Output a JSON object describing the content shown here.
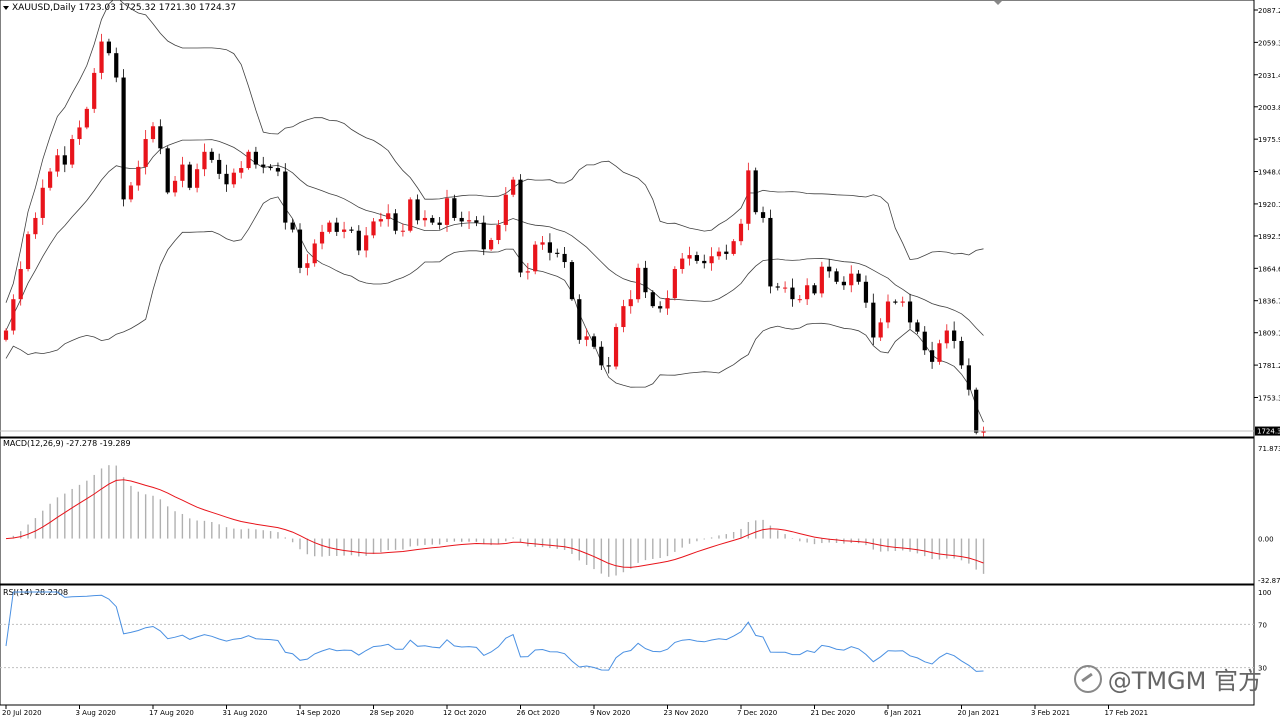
{
  "header": {
    "symbol_line": "XAUUSD,Daily  1723.03 1725.32 1721.30 1724.37"
  },
  "indicators": {
    "macd_label": "MACD(12,26,9) -27.278 -19.289",
    "rsi_label": "RSI(14) 28.2308"
  },
  "price_axis": {
    "ticks": [
      "2087.20",
      "2059.30",
      "2031.40",
      "2003.80",
      "1975.90",
      "1948.00",
      "1920.10",
      "1892.50",
      "1864.60",
      "1836.70",
      "1809.10",
      "1781.20",
      "1753.30"
    ],
    "current_price": "1724.37"
  },
  "macd_axis": {
    "ticks": [
      "71.873",
      "0.00",
      "-32.879"
    ]
  },
  "rsi_axis": {
    "ticks": [
      "100",
      "70",
      "30"
    ]
  },
  "time_axis": {
    "labels": [
      "20 Jul 2020",
      "3 Aug 2020",
      "17 Aug 2020",
      "31 Aug 2020",
      "14 Sep 2020",
      "28 Sep 2020",
      "12 Oct 2020",
      "26 Oct 2020",
      "9 Nov 2020",
      "23 Nov 2020",
      "7 Dec 2020",
      "21 Dec 2020",
      "6 Jan 2021",
      "20 Jan 2021",
      "3 Feb 2021",
      "17 Feb 2021"
    ]
  },
  "watermark": {
    "text": "@TMGM 官方"
  },
  "colors": {
    "bull": "#e8141b",
    "bear": "#000000",
    "band": "#404040",
    "signal": "#e8141b",
    "histogram": "#b0b0b0",
    "rsi": "#4a90e2"
  },
  "chart_data": {
    "type": "candlestick",
    "symbol": "XAUUSD",
    "timeframe": "Daily",
    "ohlc_last": {
      "open": 1723.03,
      "high": 1725.32,
      "low": 1721.3,
      "close": 1724.37
    },
    "ylim": [
      1727,
      2087.2
    ],
    "closes": [
      1811,
      1838,
      1864,
      1894,
      1908,
      1934,
      1948,
      1962,
      1954,
      1976,
      1986,
      2002,
      2033,
      2060,
      2050,
      2029,
      1924,
      1936,
      1952,
      1976,
      1987,
      1968,
      1930,
      1940,
      1954,
      1934,
      1950,
      1965,
      1958,
      1946,
      1937,
      1947,
      1951,
      1965,
      1954,
      1952,
      1951,
      1948,
      1904,
      1898,
      1865,
      1869,
      1886,
      1896,
      1904,
      1896,
      1898,
      1897,
      1880,
      1893,
      1905,
      1907,
      1912,
      1897,
      1897,
      1924,
      1906,
      1908,
      1904,
      1902,
      1925,
      1908,
      1905,
      1906,
      1904,
      1881,
      1889,
      1902,
      1928,
      1941,
      1861,
      1862,
      1885,
      1887,
      1878,
      1877,
      1870,
      1838,
      1803,
      1806,
      1797,
      1781,
      1780,
      1814,
      1832,
      1838,
      1865,
      1844,
      1832,
      1830,
      1839,
      1864,
      1873,
      1876,
      1871,
      1869,
      1875,
      1879,
      1877,
      1888,
      1903,
      1949,
      1913,
      1908,
      1849,
      1848,
      1848,
      1838,
      1838,
      1850,
      1843,
      1866,
      1862,
      1853,
      1850,
      1860,
      1853,
      1835,
      1805,
      1818,
      1836,
      1835,
      1836,
      1818,
      1810,
      1794,
      1784,
      1800,
      1811,
      1802,
      1781,
      1760,
      1723,
      1724
    ],
    "trend": "downtrend since August 2020 peak near 2075",
    "indicators": [
      "Bollinger Bands",
      "MACD(12,26,9)",
      "RSI(14)"
    ],
    "macd": {
      "main": -27.278,
      "signal": -19.289,
      "ylim": [
        -32.879,
        71.873
      ]
    },
    "rsi": {
      "value": 28.2308,
      "levels": [
        70,
        30
      ],
      "ylim": [
        0,
        100
      ]
    },
    "legend": "none",
    "grid": false
  }
}
